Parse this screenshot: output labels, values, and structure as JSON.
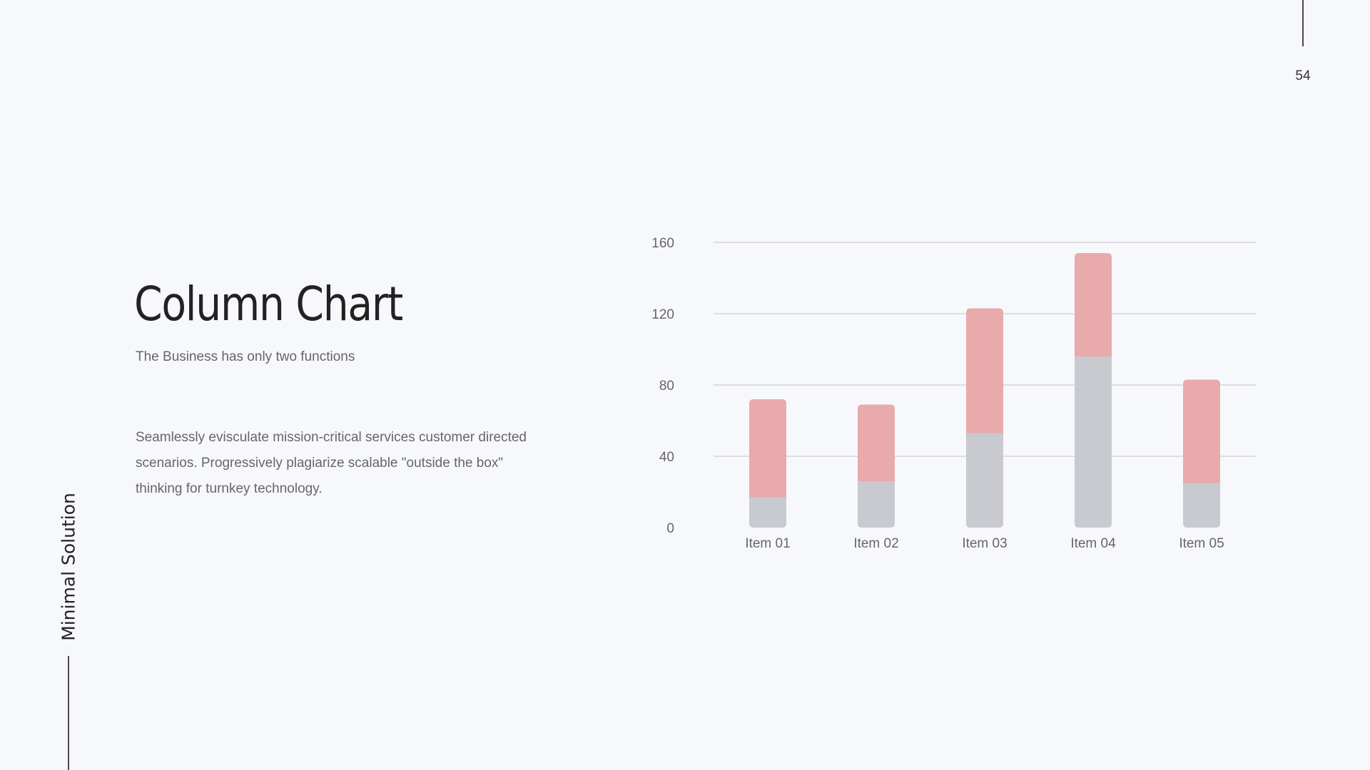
{
  "page": {
    "number": "54",
    "side_label": "Minimal Solution"
  },
  "header": {
    "title": "Column Chart",
    "subtitle": "The Business has only two functions"
  },
  "body": {
    "paragraph": "Seamlessly evisculate mission-critical services customer directed scenarios. Progressively plagiarize scalable \"outside the box\" thinking for turnkey technology."
  },
  "colors": {
    "background": "#f7f8fc",
    "series_bottom": "#c8cad0",
    "series_top": "#e8aaaa",
    "grid": "#c4c4c8",
    "text": "#222222",
    "muted_text": "#666666"
  },
  "chart_data": {
    "type": "bar",
    "stacked": true,
    "categories": [
      "Item 01",
      "Item 02",
      "Item 03",
      "Item 04",
      "Item 05"
    ],
    "series": [
      {
        "values": [
          17,
          26,
          53,
          96,
          25
        ],
        "color": "#c8cad0"
      },
      {
        "values": [
          55,
          43,
          70,
          58,
          58
        ],
        "color": "#e8aaaa"
      }
    ],
    "ylim": [
      0,
      160
    ],
    "yticks": [
      0,
      40,
      80,
      120,
      160
    ],
    "grid": true,
    "title": "",
    "xlabel": "",
    "ylabel": ""
  }
}
